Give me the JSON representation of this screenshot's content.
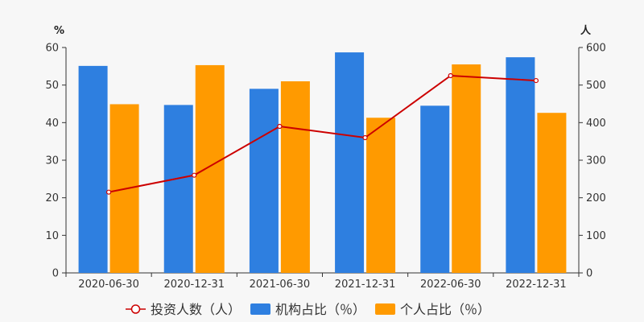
{
  "chart_data": {
    "type": "bar",
    "categories": [
      "2020-06-30",
      "2020-12-31",
      "2021-06-30",
      "2021-12-31",
      "2022-06-30",
      "2022-12-31"
    ],
    "y_left": {
      "unit": "%",
      "ticks": [
        "0",
        "10",
        "20",
        "30",
        "40",
        "50",
        "60"
      ],
      "ylim": [
        0,
        60
      ]
    },
    "y_right": {
      "unit": "人",
      "ticks": [
        "0",
        "100",
        "200",
        "300",
        "400",
        "500",
        "600"
      ],
      "ylim": [
        0,
        600
      ]
    },
    "series": [
      {
        "name": "机构占比（％）",
        "type": "bar",
        "axis": "left",
        "color": "#2e7fe0",
        "values": [
          55.1,
          44.7,
          49.0,
          58.7,
          44.5,
          57.4
        ]
      },
      {
        "name": "个人占比（％）",
        "type": "bar",
        "axis": "left",
        "color": "#ff9a00",
        "values": [
          44.9,
          55.3,
          51.0,
          41.3,
          55.5,
          42.6
        ]
      },
      {
        "name": "投资人数（人）",
        "type": "line",
        "axis": "right",
        "color": "#cc0000",
        "values": [
          215,
          260,
          390,
          360,
          525,
          512
        ]
      }
    ],
    "legend": {
      "position": "bottom",
      "order": [
        2,
        0,
        1
      ]
    },
    "grid": false
  }
}
